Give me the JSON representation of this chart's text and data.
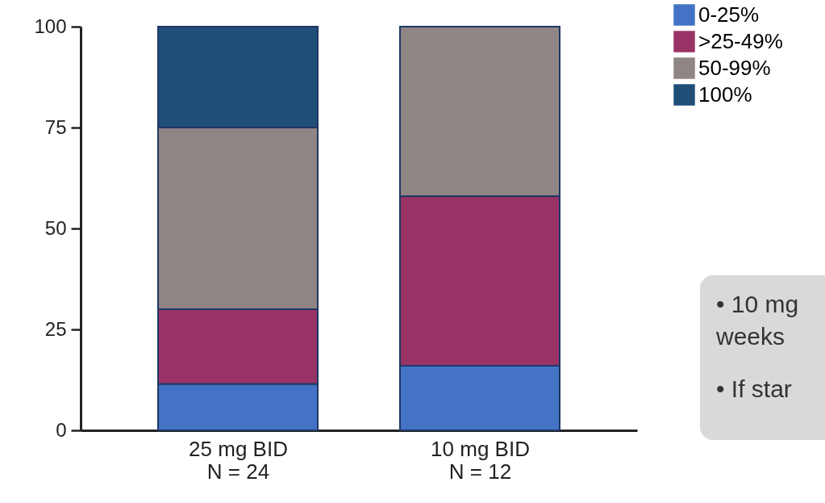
{
  "chart_data": {
    "type": "bar",
    "stacked": true,
    "categories": [
      "25 mg BID\nN = 24",
      "10 mg BID\nN = 12"
    ],
    "series": [
      {
        "name": "0-25%",
        "color": "#4472c4",
        "values": [
          11.5,
          16
        ]
      },
      {
        "name": ">25-49%",
        "color": "#993366",
        "values": [
          18.5,
          42
        ]
      },
      {
        "name": "50-99%",
        "color": "#908585",
        "values": [
          45,
          42
        ]
      },
      {
        "name": "100%",
        "color": "#1f4e79",
        "values": [
          25,
          null
        ]
      }
    ],
    "ylim": [
      0,
      100
    ],
    "yticks": [
      0,
      25,
      50,
      75,
      100
    ],
    "grid": false,
    "legend": "top right",
    "annotations": [
      "•  10 mg",
      "    weeks",
      "•  If star"
    ]
  }
}
